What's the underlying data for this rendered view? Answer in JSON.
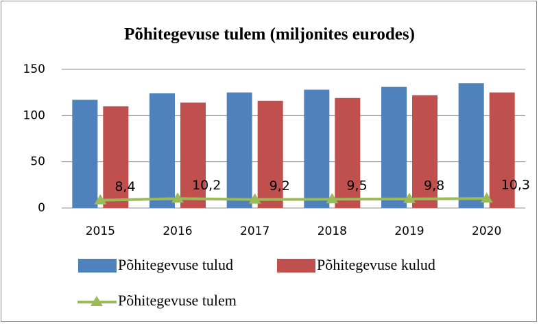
{
  "chart_data": {
    "type": "bar",
    "title": "Põhitegevuse tulem (miljonites eurodes)",
    "categories": [
      "2015",
      "2016",
      "2017",
      "2018",
      "2019",
      "2020"
    ],
    "series": [
      {
        "name": "Põhitegevuse tulud",
        "type": "bar",
        "color": "#4f81bd",
        "values": [
          117,
          124,
          125,
          128,
          131,
          135
        ]
      },
      {
        "name": "Põhitegevuse kulud",
        "type": "bar",
        "color": "#c0504d",
        "values": [
          110,
          114,
          116,
          119,
          122,
          125
        ]
      },
      {
        "name": "Põhitegevuse tulem",
        "type": "line",
        "color": "#9bbb59",
        "values": [
          8.4,
          10.2,
          9.2,
          9.5,
          9.8,
          10.3
        ],
        "value_labels": [
          "8,4",
          "10,2",
          "9,2",
          "9,5",
          "9,8",
          "10,3"
        ]
      }
    ],
    "ylim": [
      0,
      150
    ],
    "yticks": [
      0,
      50,
      100,
      150
    ],
    "grid": true,
    "legend": "bottom"
  }
}
